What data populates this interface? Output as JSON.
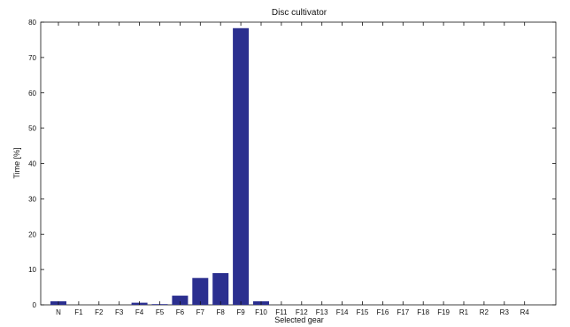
{
  "chart_data": {
    "type": "bar",
    "title": "Disc cultivator",
    "xlabel": "Selected gear",
    "ylabel": "Time [%]",
    "ylim": [
      0,
      80
    ],
    "yticks": [
      0,
      10,
      20,
      30,
      40,
      50,
      60,
      70,
      80
    ],
    "grid": false,
    "categories": [
      "N",
      "F1",
      "F2",
      "F3",
      "F4",
      "F5",
      "F6",
      "F7",
      "F8",
      "F9",
      "F10",
      "F11",
      "F12",
      "F13",
      "F14",
      "F15",
      "F16",
      "F17",
      "F18",
      "F19",
      "R1",
      "R2",
      "R3",
      "R4"
    ],
    "values": [
      1.0,
      0,
      0,
      0,
      0.6,
      0.2,
      2.6,
      7.6,
      9.0,
      78.3,
      1.0,
      0,
      0,
      0,
      0,
      0,
      0,
      0,
      0,
      0,
      0,
      0,
      0,
      0
    ],
    "bar_color": "#2b2f8f"
  }
}
